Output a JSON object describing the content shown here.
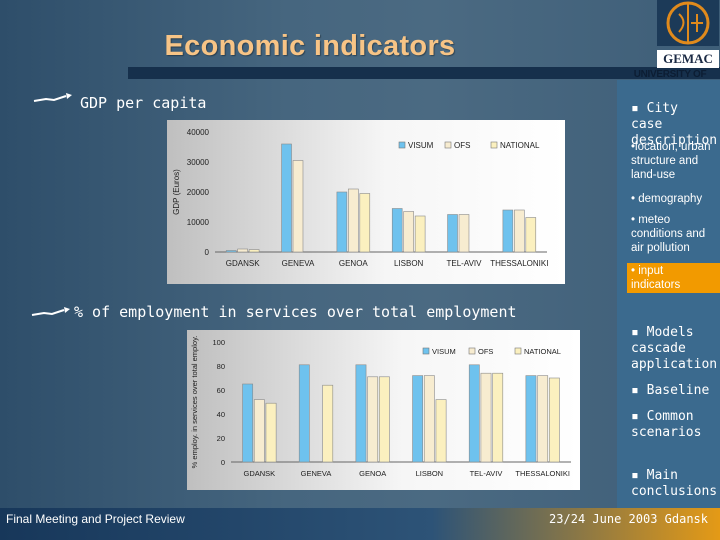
{
  "slide": {
    "title": "Economic indicators",
    "logo": {
      "name": "GEMAC",
      "university": "UNIVERSITY OF AVEIRO"
    }
  },
  "sections": [
    {
      "label": "GDP per capita"
    },
    {
      "label": "% of employment in services over total employment"
    }
  ],
  "sidebar": {
    "city_case": "▪ City case description",
    "subitems": [
      "•location, urban structure and land-use",
      "• demography",
      "• meteo conditions and air pollution",
      "• input indicators"
    ],
    "models": "▪ Models cascade application:",
    "baseline": "▪ Baseline",
    "common": "▪ Common scenarios",
    "main": "▪ Main conclusions"
  },
  "footer": {
    "left": "Final Meeting and Project Review",
    "right": "23/24 June 2003 Gdansk"
  },
  "colors": {
    "visum": "#6ec2ee",
    "ofs": "#f7ecd0",
    "national": "#fbf0bf",
    "accent": "#f29a00",
    "title": "#f7c486"
  },
  "chart_data": [
    {
      "type": "bar",
      "title": "",
      "xlabel": "",
      "ylabel": "GDP (Euros)",
      "ylim": [
        0,
        40000
      ],
      "yticks": [
        "0",
        "10000",
        "20000",
        "30000",
        "40000"
      ],
      "categories": [
        "GDANSK",
        "GENEVA",
        "GENOA",
        "LISBON",
        "TEL-AVIV",
        "THESSALONIKI"
      ],
      "legend": [
        "VISUM",
        "OFS",
        "NATIONAL"
      ],
      "series": [
        {
          "name": "VISUM",
          "values": [
            500,
            36000,
            20000,
            14500,
            12500,
            14000
          ]
        },
        {
          "name": "OFS",
          "values": [
            1000,
            30500,
            21000,
            13500,
            12500,
            14000
          ]
        },
        {
          "name": "NATIONAL",
          "values": [
            800,
            0,
            19500,
            12000,
            0,
            11500
          ]
        }
      ]
    },
    {
      "type": "bar",
      "title": "",
      "xlabel": "",
      "ylabel": "% employ. in services over total employ.",
      "ylim": [
        0,
        100
      ],
      "yticks": [
        "0",
        "20",
        "40",
        "60",
        "80",
        "100"
      ],
      "categories": [
        "GDANSK",
        "GENEVA",
        "GENOA",
        "LISBON",
        "TEL-AVIV",
        "THESSALONIKI"
      ],
      "legend": [
        "VISUM",
        "OFS",
        "NATIONAL"
      ],
      "series": [
        {
          "name": "VISUM",
          "values": [
            65,
            81,
            81,
            72,
            81,
            72
          ]
        },
        {
          "name": "OFS",
          "values": [
            52,
            0,
            71,
            72,
            74,
            72
          ]
        },
        {
          "name": "NATIONAL",
          "values": [
            49,
            64,
            71,
            52,
            74,
            70
          ]
        }
      ]
    }
  ]
}
